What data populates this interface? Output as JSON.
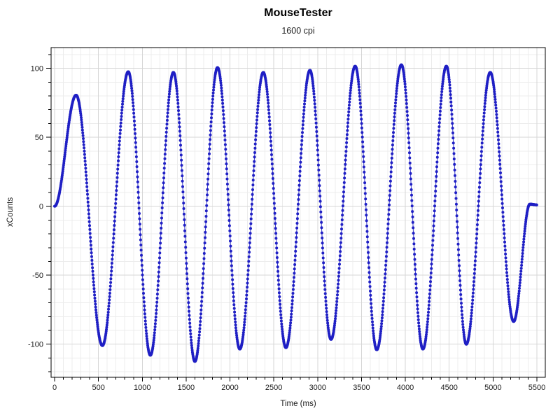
{
  "chart_data": {
    "type": "line",
    "title": "MouseTester",
    "subtitle": "1600 cpi",
    "xlabel": "Time (ms)",
    "ylabel": "xCounts",
    "legend": "none",
    "grid": "on",
    "xlim": [
      -40,
      5596
    ],
    "ylim": [
      -124,
      115
    ],
    "x_tick_values": [
      0,
      500,
      1000,
      1500,
      2000,
      2500,
      3000,
      3500,
      4000,
      4500,
      5000,
      5500
    ],
    "x_tick_labels": [
      "0",
      "500",
      "1000",
      "1500",
      "2000",
      "2500",
      "3000",
      "3500",
      "4000",
      "4500",
      "5000",
      "5500"
    ],
    "x_minor_step": 100,
    "y_tick_values": [
      -100,
      -50,
      0,
      50,
      100
    ],
    "y_tick_labels": [
      "-100",
      "-50",
      "0",
      "50",
      "100"
    ],
    "y_minor_step": 10,
    "series": [
      {
        "name": "xCounts",
        "marker": "circle",
        "marker_color": "#1f1fc4",
        "line_color": "#3c3ccd",
        "interpolation": "cosine",
        "sample_interval_ms": 3,
        "extrema_points": [
          [
            0,
            0
          ],
          [
            245,
            80.5
          ],
          [
            545,
            -101
          ],
          [
            840,
            97.5
          ],
          [
            1092,
            -108
          ],
          [
            1355,
            97
          ],
          [
            1600,
            -112.5
          ],
          [
            1858,
            100.5
          ],
          [
            2112,
            -103.5
          ],
          [
            2380,
            97
          ],
          [
            2638,
            -102.5
          ],
          [
            2912,
            98.5
          ],
          [
            3152,
            -96.5
          ],
          [
            3428,
            101.5
          ],
          [
            3674,
            -104
          ],
          [
            3955,
            102.5
          ],
          [
            4200,
            -103.5
          ],
          [
            4468,
            101.5
          ],
          [
            4695,
            -100
          ],
          [
            4968,
            97
          ],
          [
            5235,
            -83.5
          ],
          [
            5420,
            1.5
          ],
          [
            5500,
            1
          ]
        ]
      }
    ],
    "colors": {
      "background": "#ffffff",
      "plot_border": "#000000",
      "grid_minor": "#ececec",
      "grid_major": "#d6d6d6",
      "tick": "#000000",
      "tick_label": "#1a1a1a",
      "axis_label": "#1a1a1a"
    }
  }
}
